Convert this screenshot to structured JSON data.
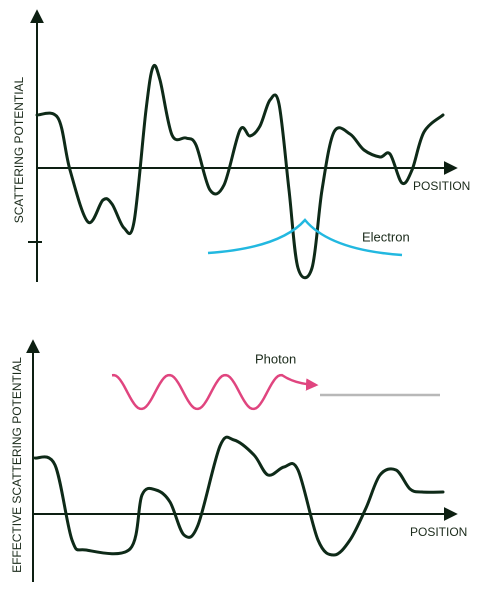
{
  "top_panel": {
    "y_axis_label": "SCATTERING POTENTIAL",
    "x_axis_label": "POSITION",
    "wave_label": "Electron"
  },
  "bottom_panel": {
    "y_axis_label": "EFFECTIVE SCATTERING POTENTIAL",
    "x_axis_label": "POSITION",
    "wave_label": "Photon"
  }
}
